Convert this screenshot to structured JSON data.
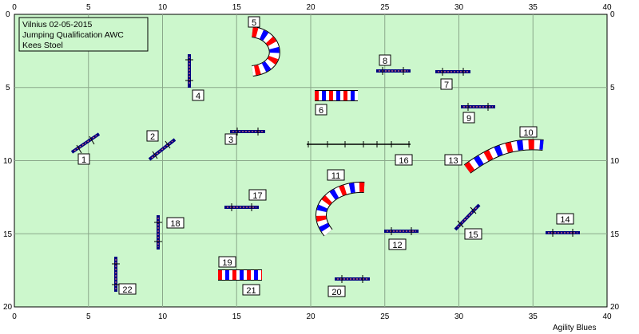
{
  "info": {
    "line1": "Vilnius 02-05-2015",
    "line2": "Jumping Qualification AWC",
    "line3": "Kees Stoel"
  },
  "credit": "Agility Blues",
  "axes": {
    "x_ticks": [
      "0",
      "5",
      "10",
      "15",
      "20",
      "25",
      "30",
      "35",
      "40"
    ],
    "y_ticks": [
      "0",
      "5",
      "10",
      "15",
      "20"
    ]
  },
  "colors": {
    "field": "#ccf7cc",
    "grid": "#8aa88a",
    "bar": "#000080",
    "tunnel_red": "#ff0000",
    "tunnel_blue": "#0000ff",
    "tunnel_white": "#ffffff"
  },
  "obstacles": [
    {
      "number": "1",
      "type": "jump"
    },
    {
      "number": "2",
      "type": "jump"
    },
    {
      "number": "3",
      "type": "jump"
    },
    {
      "number": "4",
      "type": "jump"
    },
    {
      "number": "5",
      "type": "tunnel"
    },
    {
      "number": "6",
      "type": "tunnel"
    },
    {
      "number": "7",
      "type": "jump"
    },
    {
      "number": "8",
      "type": "jump"
    },
    {
      "number": "9",
      "type": "jump"
    },
    {
      "number": "10",
      "type": "tunnel"
    },
    {
      "number": "11",
      "type": "tunnel"
    },
    {
      "number": "12",
      "type": "jump"
    },
    {
      "number": "13",
      "type": "tunnel"
    },
    {
      "number": "14",
      "type": "jump"
    },
    {
      "number": "15",
      "type": "jump"
    },
    {
      "number": "16",
      "type": "long-jump"
    },
    {
      "number": "17",
      "type": "jump"
    },
    {
      "number": "18",
      "type": "jump"
    },
    {
      "number": "19",
      "type": "tunnel"
    },
    {
      "number": "20",
      "type": "jump"
    },
    {
      "number": "21",
      "type": "tunnel"
    },
    {
      "number": "22",
      "type": "jump"
    }
  ]
}
